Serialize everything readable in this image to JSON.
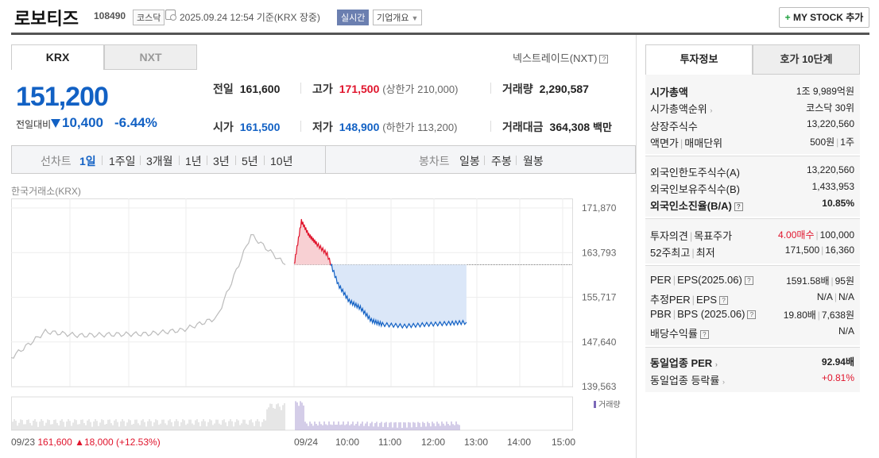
{
  "header": {
    "name": "로보티즈",
    "code": "108490",
    "market": "코스닥",
    "datetime": "2025.09.24 12:54",
    "basis": "기준(KRX 장중)",
    "live_badge": "실시간",
    "corp_info": "기업개요",
    "mystock_label": "MY STOCK 추가"
  },
  "exchange_tabs": [
    "KRX",
    "NXT"
  ],
  "nexttrade_label": "넥스트레이드(NXT)",
  "quote": {
    "price": "151,200",
    "change_label": "전일대비",
    "change_value": "10,400",
    "change_pct": "-6.44%"
  },
  "stats": {
    "prev_label": "전일",
    "prev_value": "161,600",
    "high_label": "고가",
    "high_value": "171,500",
    "upper_limit": "(상한가 210,000)",
    "volume_label": "거래량",
    "volume_value": "2,290,587",
    "open_label": "시가",
    "open_value": "161,500",
    "low_label": "저가",
    "low_value": "148,900",
    "lower_limit": "(하한가 113,200)",
    "amount_label": "거래대금",
    "amount_value": "364,308",
    "amount_unit": "백만"
  },
  "chart_bar": {
    "line_label": "선차트",
    "line_periods": [
      "1일",
      "1주일",
      "3개월",
      "1년",
      "3년",
      "5년",
      "10년"
    ],
    "selected": "1일",
    "candle_label": "봉차트",
    "candle_periods": [
      "일봉",
      "주봉",
      "월봉"
    ]
  },
  "source_label": "한국거래소(KRX)",
  "chart_data": {
    "type": "line",
    "y_ticks": [
      "171,870",
      "163,793",
      "155,717",
      "147,640",
      "139,563"
    ],
    "ylim": [
      139563,
      171870
    ],
    "reference_price": 161600,
    "x_ticks": [
      "09/23",
      "09/24",
      "10:00",
      "11:00",
      "12:00",
      "13:00",
      "14:00",
      "15:00"
    ],
    "volume_label": "거래량",
    "prev_day_footer": {
      "date": "09/23",
      "close": "161,600",
      "change": "18,000",
      "pct": "(+12.53%)"
    },
    "series": [
      {
        "x": [
          "09/23 09:00",
          "09/23 10:00",
          "09/23 11:00",
          "09/23 12:00",
          "09/23 13:00",
          "09/23 14:00",
          "09/23 14:30",
          "09/23 15:00",
          "09/23 15:30"
        ],
        "values": [
          144800,
          149500,
          148800,
          149000,
          149100,
          149800,
          152000,
          167000,
          161600
        ]
      },
      {
        "x": [
          "09:00",
          "09:10",
          "09:20",
          "09:30",
          "09:45",
          "10:00",
          "10:15",
          "10:30",
          "10:45",
          "11:00",
          "11:30",
          "12:00",
          "12:30",
          "12:54"
        ],
        "values": [
          161500,
          169500,
          167000,
          165500,
          163500,
          158000,
          155000,
          153800,
          151500,
          150800,
          150500,
          150800,
          151000,
          151200
        ]
      }
    ]
  },
  "right_tabs": [
    "투자정보",
    "호가 10단계"
  ],
  "invest": {
    "mcap_label": "시가총액",
    "mcap_value": "1조 9,989억원",
    "mcap_rank_label": "시가총액순위",
    "mcap_rank_value": "코스닥 30위",
    "shares_label": "상장주식수",
    "shares_value": "13,220,560",
    "face_label": "액면가",
    "unit_label": "매매단위",
    "face_value": "500원",
    "unit_value": "1주",
    "foreign_limit_label": "외국인한도주식수(A)",
    "foreign_limit_value": "13,220,560",
    "foreign_hold_label": "외국인보유주식수(B)",
    "foreign_hold_value": "1,433,953",
    "foreign_ratio_label": "외국인소진율(B/A)",
    "foreign_ratio_value": "10.85%",
    "opinion_label": "투자의견",
    "target_label": "목표주가",
    "opinion_value": "4.00매수",
    "target_value": "100,000",
    "w52_high_label": "52주최고",
    "w52_low_label": "최저",
    "w52_high_value": "171,500",
    "w52_low_value": "16,360",
    "per_label": "PER",
    "eps_label": "EPS(2025.06)",
    "per_value": "1591.58배",
    "eps_value": "95원",
    "est_per_label": "추정PER",
    "est_eps_label": "EPS",
    "est_per_value": "N/A",
    "est_eps_value": "N/A",
    "pbr_label": "PBR",
    "bps_label": "BPS (2025.06)",
    "pbr_value": "19.80배",
    "bps_value": "7,638원",
    "div_label": "배당수익률",
    "div_value": "N/A",
    "ind_per_label": "동일업종 PER",
    "ind_per_value": "92.94배",
    "ind_rate_label": "동일업종 등락률",
    "ind_rate_value": "+0.81%"
  },
  "colors": {
    "up": "#e0142c",
    "down": "#1261c4"
  }
}
